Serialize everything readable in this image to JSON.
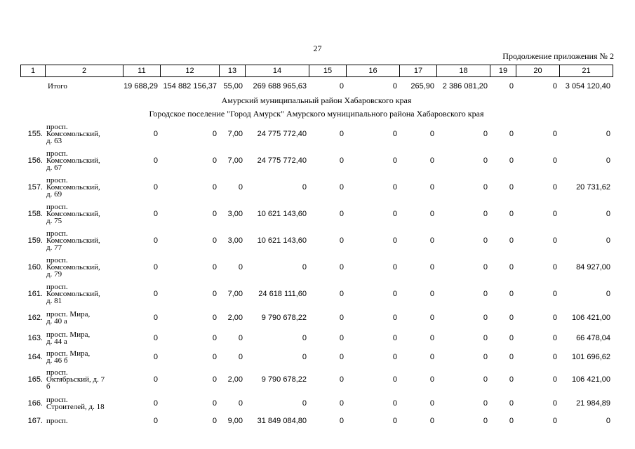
{
  "page_number": "27",
  "appendix_note": "Продолжение приложения № 2",
  "header_columns": [
    "1",
    "2",
    "11",
    "12",
    "13",
    "14",
    "15",
    "16",
    "17",
    "18",
    "19",
    "20",
    "21"
  ],
  "total_row": {
    "label": "Итого",
    "values": [
      "19 688,29",
      "154 882 156,37",
      "55,00",
      "269 688 965,63",
      "0",
      "0",
      "265,90",
      "2 386 081,20",
      "0",
      "0",
      "3 054 120,40"
    ]
  },
  "region_title": "Амурский муниципальный район Хабаровского края",
  "settlement_title": "Городское поселение \"Город Амурск\" Амурского муниципального района Хабаровского края",
  "rows": [
    {
      "num": "155.",
      "addr": [
        "просп.",
        "Комсомольский,",
        "д. 63"
      ],
      "values": [
        "0",
        "0",
        "7,00",
        "24 775 772,40",
        "0",
        "0",
        "0",
        "0",
        "0",
        "0",
        "0"
      ]
    },
    {
      "num": "156.",
      "addr": [
        "просп.",
        "Комсомольский,",
        "д. 67"
      ],
      "values": [
        "0",
        "0",
        "7,00",
        "24 775 772,40",
        "0",
        "0",
        "0",
        "0",
        "0",
        "0",
        "0"
      ]
    },
    {
      "num": "157.",
      "addr": [
        "просп.",
        "Комсомольский,",
        "д. 69"
      ],
      "values": [
        "0",
        "0",
        "0",
        "0",
        "0",
        "0",
        "0",
        "0",
        "0",
        "0",
        "20 731,62"
      ]
    },
    {
      "num": "158.",
      "addr": [
        "просп.",
        "Комсомольский,",
        "д. 75"
      ],
      "values": [
        "0",
        "0",
        "3,00",
        "10 621 143,60",
        "0",
        "0",
        "0",
        "0",
        "0",
        "0",
        "0"
      ]
    },
    {
      "num": "159.",
      "addr": [
        "просп.",
        "Комсомольский,",
        "д. 77"
      ],
      "values": [
        "0",
        "0",
        "3,00",
        "10 621 143,60",
        "0",
        "0",
        "0",
        "0",
        "0",
        "0",
        "0"
      ]
    },
    {
      "num": "160.",
      "addr": [
        "просп.",
        "Комсомольский,",
        "д. 79"
      ],
      "values": [
        "0",
        "0",
        "0",
        "0",
        "0",
        "0",
        "0",
        "0",
        "0",
        "0",
        "84 927,00"
      ]
    },
    {
      "num": "161.",
      "addr": [
        "просп.",
        "Комсомольский,",
        "д. 81"
      ],
      "values": [
        "0",
        "0",
        "7,00",
        "24 618 111,60",
        "0",
        "0",
        "0",
        "0",
        "0",
        "0",
        "0"
      ]
    },
    {
      "num": "162.",
      "addr": [
        "просп. Мира,",
        "д. 40 а"
      ],
      "values": [
        "0",
        "0",
        "2,00",
        "9 790 678,22",
        "0",
        "0",
        "0",
        "0",
        "0",
        "0",
        "106 421,00"
      ]
    },
    {
      "num": "163.",
      "addr": [
        "просп. Мира,",
        "д. 44 а"
      ],
      "values": [
        "0",
        "0",
        "0",
        "0",
        "0",
        "0",
        "0",
        "0",
        "0",
        "0",
        "66 478,04"
      ]
    },
    {
      "num": "164.",
      "addr": [
        "просп. Мира,",
        "д. 46 б"
      ],
      "values": [
        "0",
        "0",
        "0",
        "0",
        "0",
        "0",
        "0",
        "0",
        "0",
        "0",
        "101 696,62"
      ]
    },
    {
      "num": "165.",
      "addr": [
        "просп.",
        "Октябрьский, д. 7",
        "б"
      ],
      "values": [
        "0",
        "0",
        "2,00",
        "9 790 678,22",
        "0",
        "0",
        "0",
        "0",
        "0",
        "0",
        "106 421,00"
      ]
    },
    {
      "num": "166.",
      "addr": [
        "просп.",
        "Строителей, д. 18"
      ],
      "values": [
        "0",
        "0",
        "0",
        "0",
        "0",
        "0",
        "0",
        "0",
        "0",
        "0",
        "21 984,89"
      ]
    },
    {
      "num": "167.",
      "addr": [
        "просп."
      ],
      "values": [
        "0",
        "0",
        "9,00",
        "31 849 084,80",
        "0",
        "0",
        "0",
        "0",
        "0",
        "0",
        "0"
      ]
    }
  ]
}
